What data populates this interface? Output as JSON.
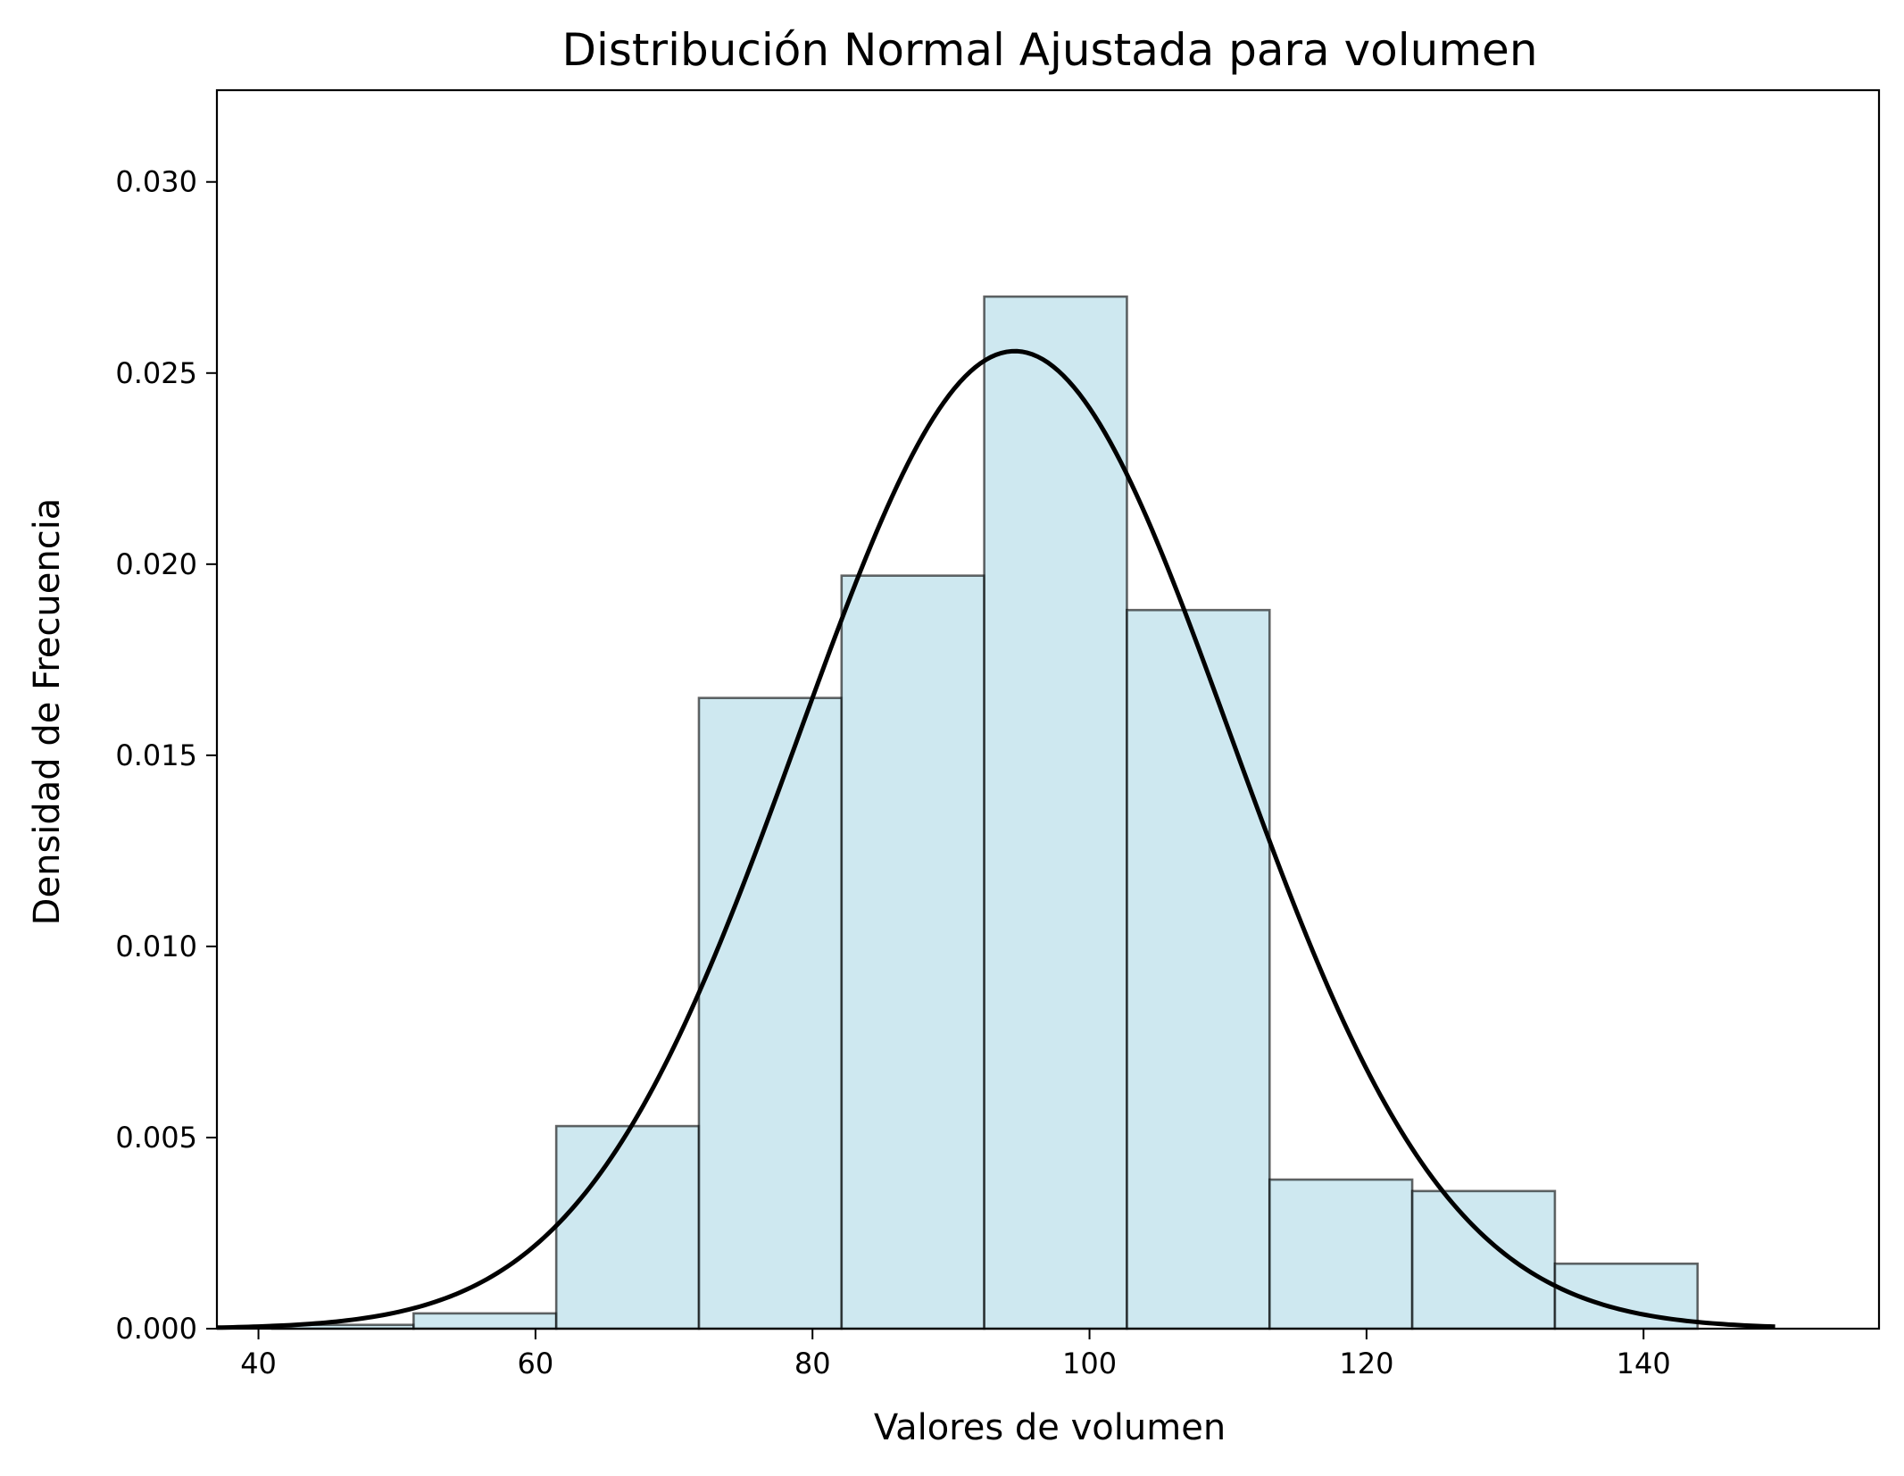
{
  "chart_data": {
    "type": "bar",
    "title": "Distribución Normal Ajustada para volumen",
    "xlabel": "Valores de volumen",
    "ylabel": "Densidad de Frecuencia",
    "xlim": [
      37,
      157
    ],
    "ylim": [
      0,
      0.0324
    ],
    "x_ticks": [
      40,
      60,
      80,
      100,
      120,
      140
    ],
    "y_ticks": [
      0.0,
      0.005,
      0.01,
      0.015,
      0.02,
      0.025,
      0.03
    ],
    "y_tick_labels": [
      "0.000",
      "0.005",
      "0.010",
      "0.015",
      "0.020",
      "0.025",
      "0.030"
    ],
    "histogram": {
      "bin_edges": [
        41.0,
        51.2,
        61.5,
        71.8,
        82.1,
        92.4,
        102.7,
        113.0,
        123.3,
        133.6,
        143.9
      ],
      "density": [
        0.0001,
        0.0004,
        0.0053,
        0.0165,
        0.0197,
        0.027,
        0.0188,
        0.0039,
        0.0036,
        0.0017
      ],
      "fill_color": "#add8e6",
      "edge_color": "#000000"
    },
    "fitted_curve": {
      "distribution": "normal",
      "mean": 94.6,
      "std": 15.6,
      "x_range": [
        37,
        149.5
      ],
      "color": "#000000"
    },
    "grid": false,
    "legend": "none"
  }
}
